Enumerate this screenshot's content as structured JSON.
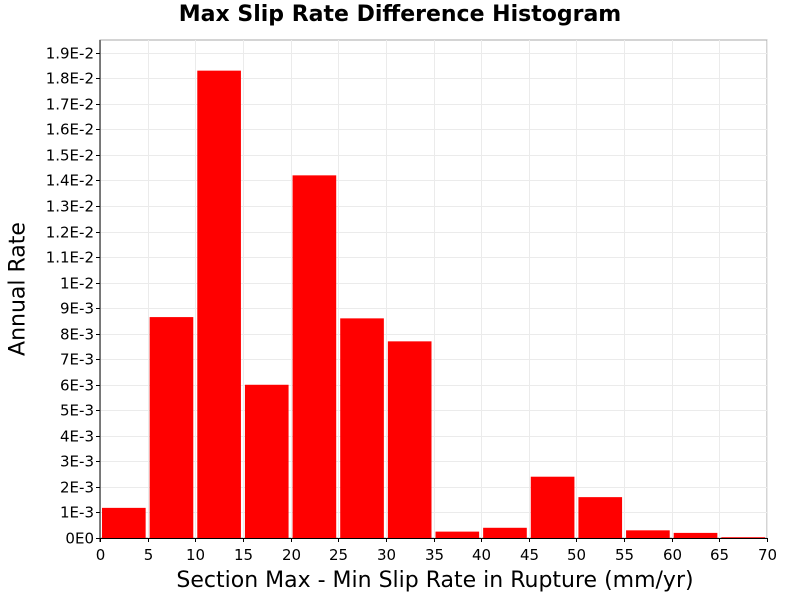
{
  "chart_data": {
    "type": "bar",
    "title": "Max Slip Rate Difference Histogram",
    "xlabel": "Section Max - Min Slip Rate in Rupture (mm/yr)",
    "ylabel": "Annual Rate",
    "xlim": [
      0,
      70
    ],
    "ylim": [
      0,
      0.0195
    ],
    "grid": true,
    "bar_color": "#ff0000",
    "bin_width": 5,
    "bins": [
      {
        "x_start": 0,
        "x_end": 5,
        "value": 0.00118
      },
      {
        "x_start": 5,
        "x_end": 10,
        "value": 0.00865
      },
      {
        "x_start": 10,
        "x_end": 15,
        "value": 0.0183
      },
      {
        "x_start": 15,
        "x_end": 20,
        "value": 0.006
      },
      {
        "x_start": 20,
        "x_end": 25,
        "value": 0.0142
      },
      {
        "x_start": 25,
        "x_end": 30,
        "value": 0.0086
      },
      {
        "x_start": 30,
        "x_end": 35,
        "value": 0.0077
      },
      {
        "x_start": 35,
        "x_end": 40,
        "value": 0.00025
      },
      {
        "x_start": 40,
        "x_end": 45,
        "value": 0.0004
      },
      {
        "x_start": 45,
        "x_end": 50,
        "value": 0.0024
      },
      {
        "x_start": 50,
        "x_end": 55,
        "value": 0.0016
      },
      {
        "x_start": 55,
        "x_end": 60,
        "value": 0.0003
      },
      {
        "x_start": 60,
        "x_end": 65,
        "value": 0.0002
      },
      {
        "x_start": 65,
        "x_end": 70,
        "value": 3e-05
      }
    ],
    "x_ticks": [
      {
        "value": 0,
        "label": "0"
      },
      {
        "value": 5,
        "label": "5"
      },
      {
        "value": 10,
        "label": "10"
      },
      {
        "value": 15,
        "label": "15"
      },
      {
        "value": 20,
        "label": "20"
      },
      {
        "value": 25,
        "label": "25"
      },
      {
        "value": 30,
        "label": "30"
      },
      {
        "value": 35,
        "label": "35"
      },
      {
        "value": 40,
        "label": "40"
      },
      {
        "value": 45,
        "label": "45"
      },
      {
        "value": 50,
        "label": "50"
      },
      {
        "value": 55,
        "label": "55"
      },
      {
        "value": 60,
        "label": "60"
      },
      {
        "value": 65,
        "label": "65"
      },
      {
        "value": 70,
        "label": "70"
      }
    ],
    "y_ticks": [
      {
        "value": 0,
        "label": "0E0"
      },
      {
        "value": 0.001,
        "label": "1E-3"
      },
      {
        "value": 0.002,
        "label": "2E-3"
      },
      {
        "value": 0.003,
        "label": "3E-3"
      },
      {
        "value": 0.004,
        "label": "4E-3"
      },
      {
        "value": 0.005,
        "label": "5E-3"
      },
      {
        "value": 0.006,
        "label": "6E-3"
      },
      {
        "value": 0.007,
        "label": "7E-3"
      },
      {
        "value": 0.008,
        "label": "8E-3"
      },
      {
        "value": 0.009,
        "label": "9E-3"
      },
      {
        "value": 0.01,
        "label": "1E-2"
      },
      {
        "value": 0.011,
        "label": "1.1E-2"
      },
      {
        "value": 0.012,
        "label": "1.2E-2"
      },
      {
        "value": 0.013,
        "label": "1.3E-2"
      },
      {
        "value": 0.014,
        "label": "1.4E-2"
      },
      {
        "value": 0.015,
        "label": "1.5E-2"
      },
      {
        "value": 0.016,
        "label": "1.6E-2"
      },
      {
        "value": 0.017,
        "label": "1.7E-2"
      },
      {
        "value": 0.018,
        "label": "1.8E-2"
      },
      {
        "value": 0.019,
        "label": "1.9E-2"
      }
    ]
  }
}
